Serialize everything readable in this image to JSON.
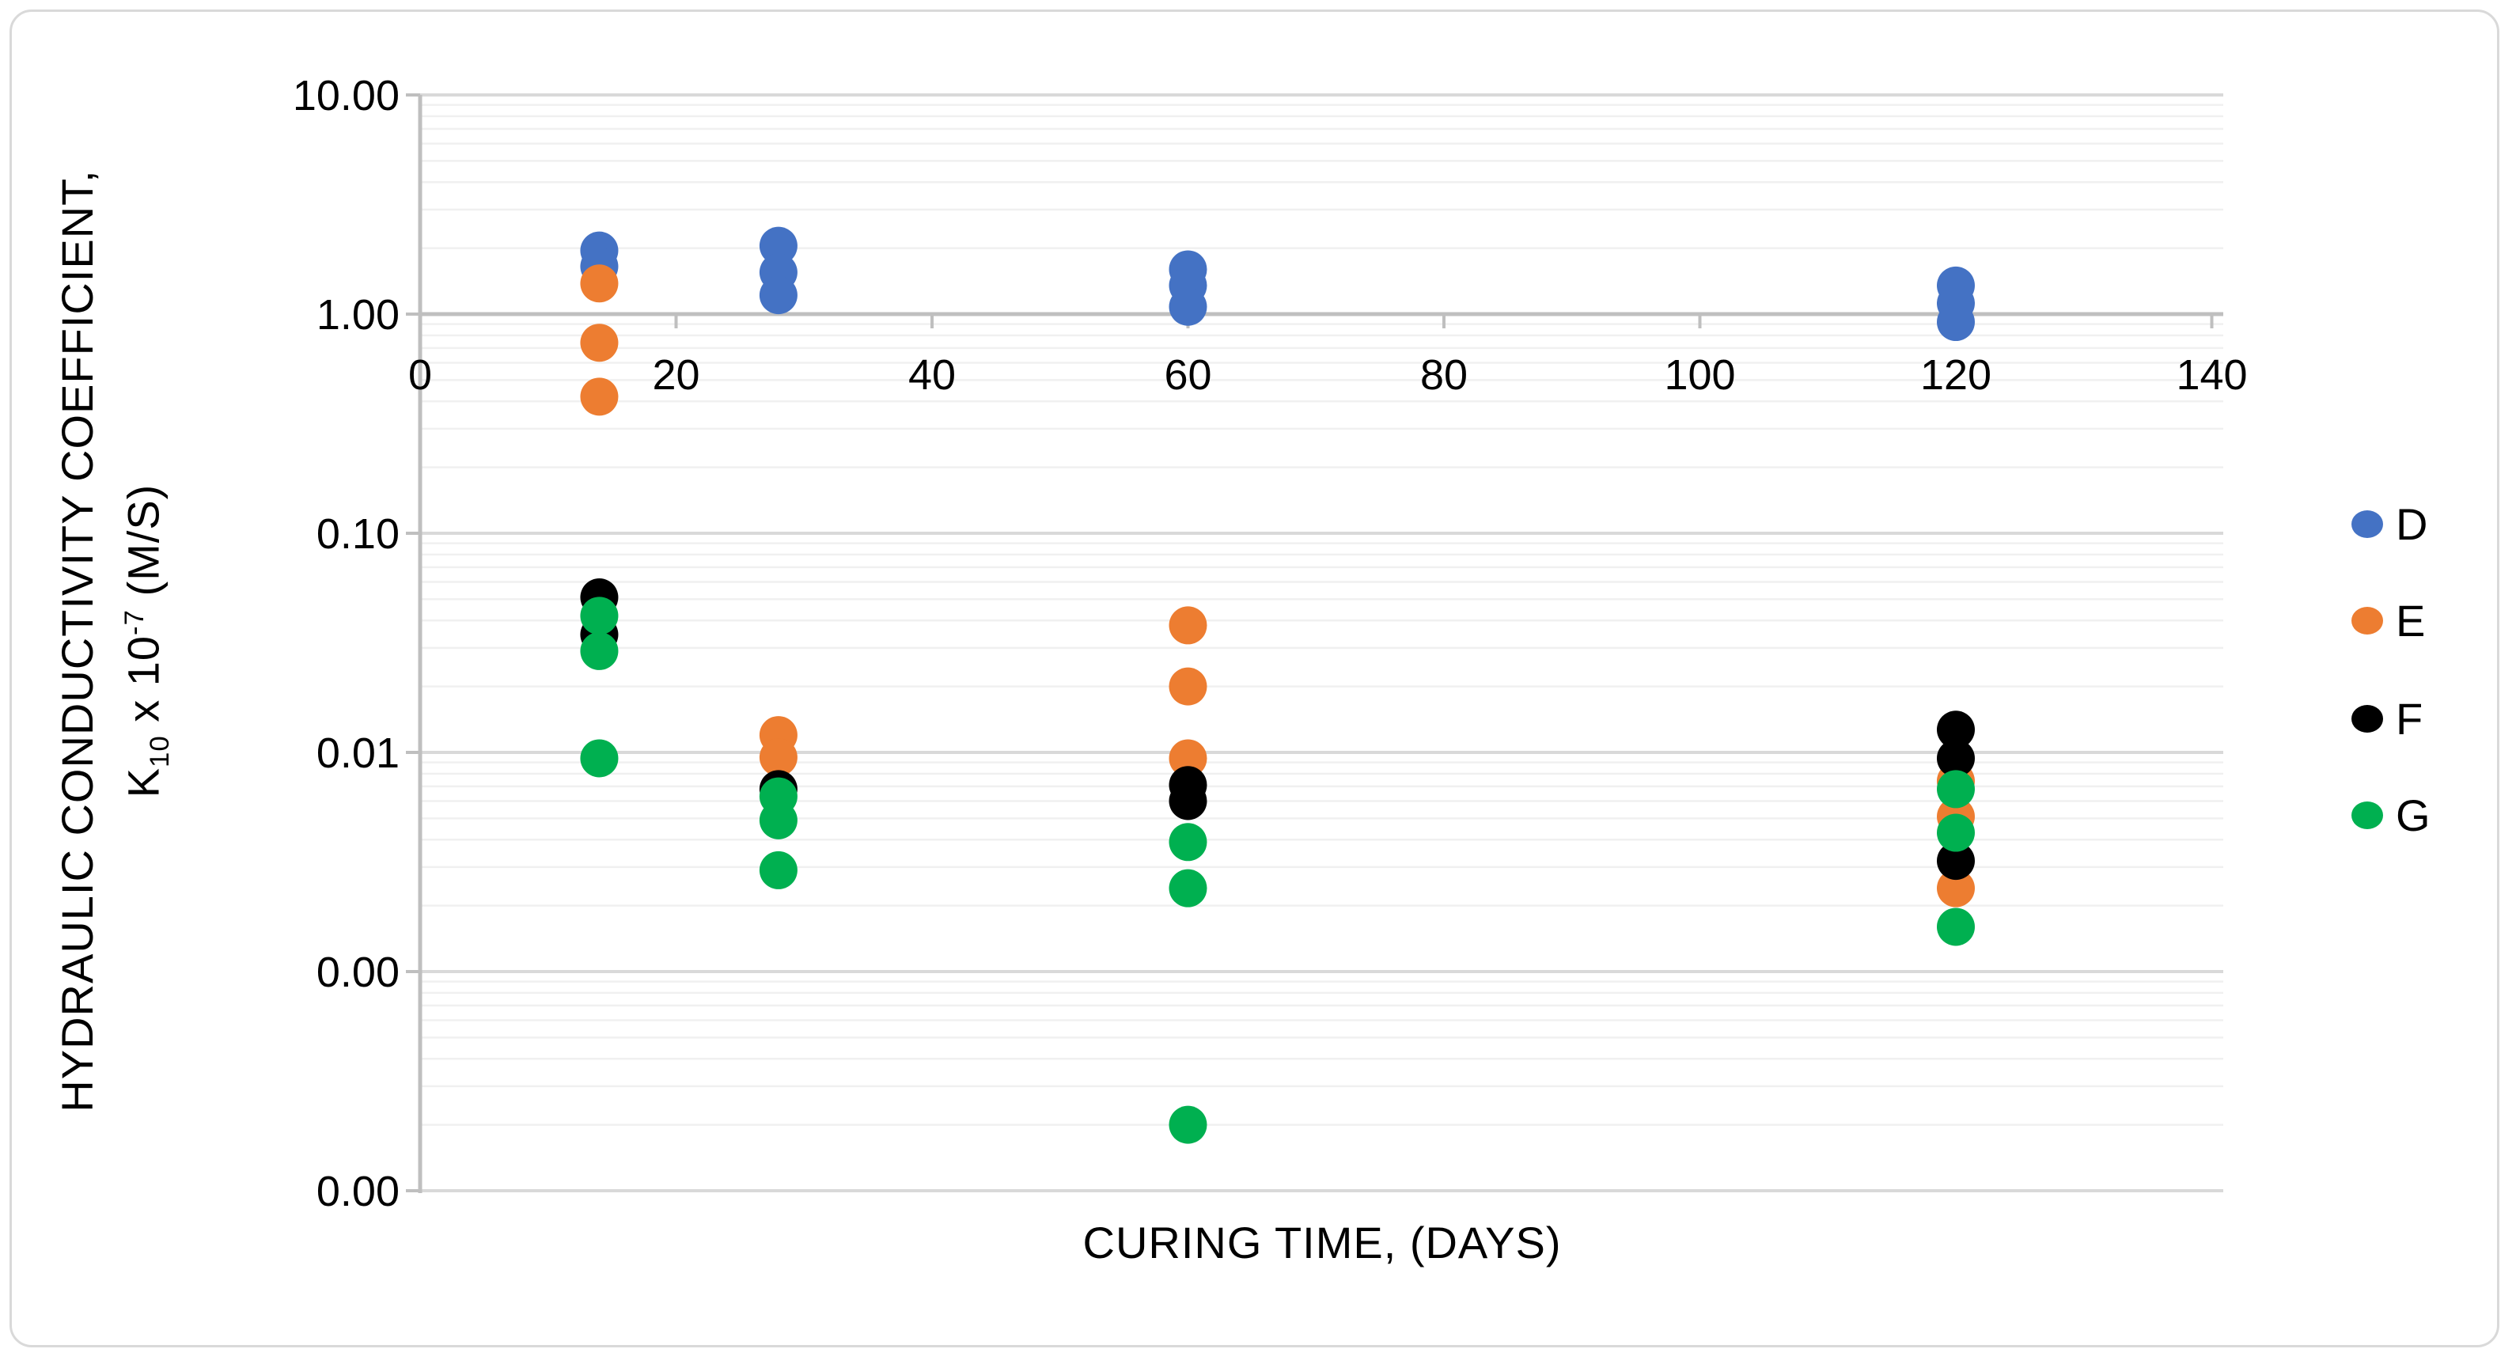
{
  "chart_data": {
    "type": "scatter",
    "title": "",
    "xlabel": "CURING TIME, (DAYS)",
    "ylabel": "HYDRAULIC CONDUCTIVITY COEFFICIENT, K10 x 10^-7 (M/S)",
    "ylabel_lines": {
      "line1": "HYDRAULIC CONDUCTIVITY COEFFICIENT,",
      "line2_k": "K",
      "line2_k_sub": "10",
      "line2_times": " x 10",
      "line2_exp": "-7",
      "line2_unit": " (M/S)"
    },
    "x_axis": {
      "min": 0,
      "max": 140,
      "tick_step": 20,
      "grid": false,
      "ticks": [
        {
          "v": 0,
          "label": "0"
        },
        {
          "v": 20,
          "label": "20"
        },
        {
          "v": 40,
          "label": "40"
        },
        {
          "v": 60,
          "label": "60"
        },
        {
          "v": 80,
          "label": "80"
        },
        {
          "v": 100,
          "label": "100"
        },
        {
          "v": 120,
          "label": "120"
        },
        {
          "v": 140,
          "label": "140"
        }
      ]
    },
    "y_axis": {
      "scale": "log",
      "min": 0.0001,
      "max": 10,
      "grid": true,
      "minor_grid": true,
      "ticks": [
        {
          "v": 10,
          "label": "10.00"
        },
        {
          "v": 1,
          "label": "1.00"
        },
        {
          "v": 0.1,
          "label": "0.10"
        },
        {
          "v": 0.01,
          "label": "0.01"
        },
        {
          "v": 0.001,
          "label": "0.00"
        },
        {
          "v": 0.0001,
          "label": "0.00"
        }
      ]
    },
    "legend": {
      "position": "right",
      "entries": [
        "D",
        "E",
        "F",
        "G"
      ]
    },
    "series": [
      {
        "name": "D",
        "color": "#4472C4",
        "points": [
          [
            14,
            1.95
          ],
          [
            14,
            1.65
          ],
          [
            28,
            2.05
          ],
          [
            28,
            1.55
          ],
          [
            28,
            1.22
          ],
          [
            60,
            1.6
          ],
          [
            60,
            1.35
          ],
          [
            60,
            1.08
          ],
          [
            120,
            1.35
          ],
          [
            120,
            1.12
          ],
          [
            120,
            0.92
          ]
        ]
      },
      {
        "name": "E",
        "color": "#ED7D31",
        "points": [
          [
            14,
            1.38
          ],
          [
            14,
            0.74
          ],
          [
            14,
            0.42
          ],
          [
            28,
            0.012
          ],
          [
            28,
            0.0095
          ],
          [
            60,
            0.038
          ],
          [
            60,
            0.02
          ],
          [
            60,
            0.0094
          ],
          [
            120,
            0.0074
          ],
          [
            120,
            0.0051
          ],
          [
            120,
            0.0024
          ]
        ]
      },
      {
        "name": "F",
        "color": "#000000",
        "points": [
          [
            14,
            0.051
          ],
          [
            14,
            0.0345
          ],
          [
            28,
            0.0068
          ],
          [
            60,
            0.0071
          ],
          [
            60,
            0.006
          ],
          [
            120,
            0.0127
          ],
          [
            120,
            0.0094
          ],
          [
            120,
            0.0032
          ]
        ]
      },
      {
        "name": "G",
        "color": "#00B050",
        "points": [
          [
            14,
            0.042
          ],
          [
            14,
            0.029
          ],
          [
            14,
            0.0094
          ],
          [
            28,
            0.0063
          ],
          [
            28,
            0.0049
          ],
          [
            28,
            0.0029
          ],
          [
            60,
            0.0039
          ],
          [
            60,
            0.0024
          ],
          [
            60,
            0.0002
          ],
          [
            120,
            0.0068
          ],
          [
            120,
            0.0043
          ],
          [
            120,
            0.0016
          ]
        ]
      }
    ],
    "style": {
      "background": "#FFFFFF",
      "border": "#D9D9D9",
      "axis_line": "#BFBFBF",
      "major_gridline": "#D9D9D9",
      "minor_gridline": "#F0F0F0",
      "text_color": "#000000"
    }
  }
}
